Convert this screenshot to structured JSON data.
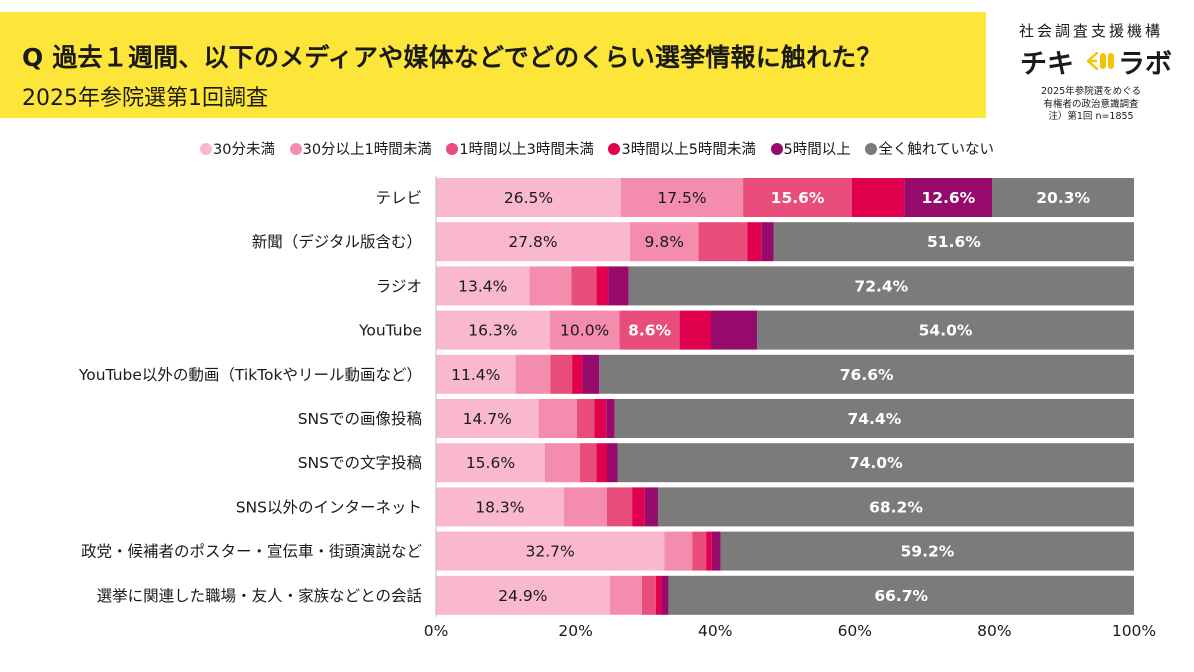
{
  "header": {
    "title": "Q 過去１週間、以下のメディアや媒体などでどのくらい選挙情報に触れた？",
    "subtitle": "2025年参院選第1回調査"
  },
  "brand": {
    "org": "社会調査支援機構",
    "logo_left": "チキ",
    "logo_right": "ラボ",
    "note_lines": [
      "2025年参院選をめぐる",
      "有権者の政治意識調査",
      "注）第1回 n=1855"
    ]
  },
  "chart_data": {
    "type": "bar",
    "orientation": "horizontal",
    "stacked": true,
    "xlim": [
      0,
      100
    ],
    "x_ticks": [
      "0%",
      "20%",
      "40%",
      "60%",
      "80%",
      "100%"
    ],
    "legend_position": "top",
    "categories": [
      "テレビ",
      "新聞（デジタル版含む）",
      "ラジオ",
      "YouTube",
      "YouTube以外の動画（TikTokやリール動画など）",
      "SNSでの画像投稿",
      "SNSでの文字投稿",
      "SNS以外のインターネット",
      "政党・候補者のポスター・宣伝車・街頭演説など",
      "選挙に関連した職場・友人・家族などとの会話"
    ],
    "series": [
      {
        "name": "30分未満",
        "color": "#f9b8cf",
        "label_color": "#1a1a1a",
        "values": [
          26.5,
          27.8,
          13.4,
          16.3,
          11.4,
          14.7,
          15.6,
          18.3,
          32.7,
          24.9
        ],
        "labels": [
          "26.5%",
          "27.8%",
          "13.4%",
          "16.3%",
          "11.4%",
          "14.7%",
          "15.6%",
          "18.3%",
          "32.7%",
          "24.9%"
        ]
      },
      {
        "name": "30分以上1時間未満",
        "color": "#f48cae",
        "label_color": "#1a1a1a",
        "values": [
          17.5,
          9.8,
          6.0,
          10.0,
          5.0,
          5.5,
          5.0,
          6.2,
          4.0,
          4.6
        ],
        "labels": [
          "17.5%",
          "9.8%",
          "",
          "10.0%",
          "",
          "",
          "",
          "",
          "",
          ""
        ]
      },
      {
        "name": "1時間以上3時間未満",
        "color": "#e84d7b",
        "label_color": "#ffffff",
        "values": [
          15.6,
          7.0,
          3.6,
          8.6,
          3.1,
          2.5,
          2.4,
          3.6,
          2.0,
          2.0
        ],
        "labels": [
          "15.6%",
          "",
          "",
          "8.6%",
          "",
          "",
          "",
          "",
          "",
          ""
        ]
      },
      {
        "name": "3時間以上5時間未満",
        "color": "#e0004d",
        "label_color": "#ffffff",
        "values": [
          7.5,
          2.0,
          1.7,
          4.5,
          1.5,
          1.7,
          1.5,
          1.8,
          0.8,
          0.8
        ],
        "labels": [
          "",
          "",
          "",
          "",
          "",
          "",
          "",
          "",
          "",
          ""
        ]
      },
      {
        "name": "5時間以上",
        "color": "#960a6c",
        "label_color": "#ffffff",
        "values": [
          12.6,
          1.8,
          2.9,
          6.6,
          2.4,
          1.2,
          1.5,
          1.9,
          1.3,
          1.0
        ],
        "labels": [
          "12.6%",
          "",
          "",
          "",
          "",
          "",
          "",
          "",
          "",
          ""
        ]
      },
      {
        "name": "全く触れていない",
        "color": "#7b7b7b",
        "label_color": "#ffffff",
        "values": [
          20.3,
          51.6,
          72.4,
          54.0,
          76.6,
          74.4,
          74.0,
          68.2,
          59.2,
          66.7
        ],
        "labels": [
          "20.3%",
          "51.6%",
          "72.4%",
          "54.0%",
          "76.6%",
          "74.4%",
          "74.0%",
          "68.2%",
          "59.2%",
          "66.7%"
        ]
      }
    ]
  }
}
